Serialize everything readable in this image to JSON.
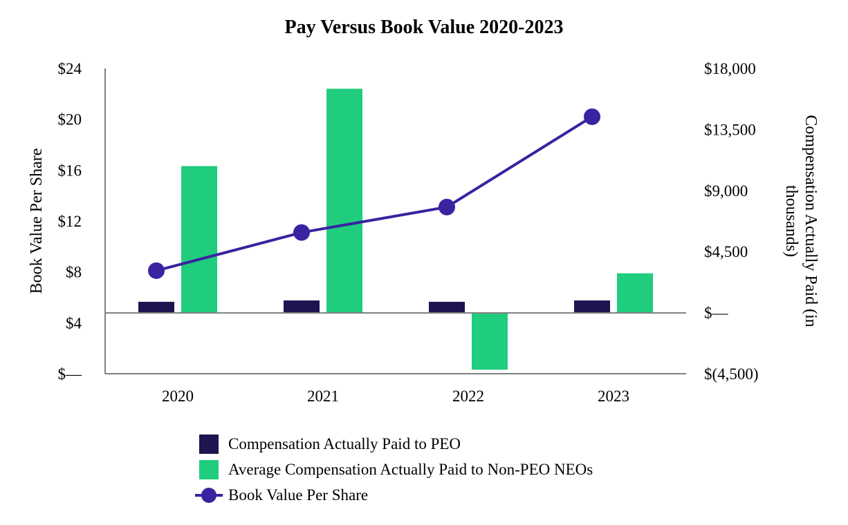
{
  "chart_data": {
    "type": "bar",
    "title": "Pay Versus Book Value 2020-2023",
    "categories": [
      "2020",
      "2021",
      "2022",
      "2023"
    ],
    "ylabel_left": "Book Value Per Share",
    "ylabel_right": "Compensation Actually Paid (in thousands)",
    "ylim_left": [
      0,
      24
    ],
    "ylim_right": [
      -4500,
      18000
    ],
    "left_ticks": [
      "$—",
      "$4",
      "$8",
      "$12",
      "$16",
      "$20",
      "$24"
    ],
    "right_ticks": [
      "$(4,500)",
      "$—",
      "$4,500",
      "$9,000",
      "$13,500",
      "$18,000"
    ],
    "series": [
      {
        "name": "Compensation Actually Paid to PEO",
        "type": "bar",
        "axis": "right",
        "color": "#1e1450",
        "values": [
          800,
          900,
          800,
          900
        ]
      },
      {
        "name": "Average Compensation Actually Paid to Non-PEO NEOs",
        "type": "bar",
        "axis": "right",
        "color": "#20cc7e",
        "values": [
          10800,
          16500,
          -4200,
          2900
        ]
      },
      {
        "name": "Book Value Per Share",
        "type": "line",
        "axis": "left",
        "color": "#3a22a0",
        "values": [
          8.1,
          11.1,
          13.1,
          20.2
        ]
      }
    ],
    "grid": false,
    "legend_position": "bottom"
  }
}
